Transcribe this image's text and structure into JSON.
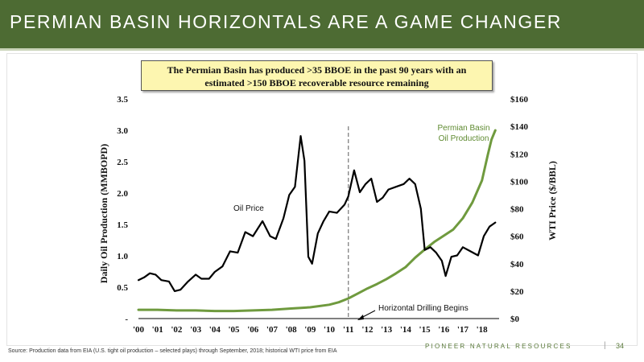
{
  "header": {
    "title": "PERMIAN BASIN HORIZONTALS ARE A GAME CHANGER"
  },
  "callout": {
    "line1": "The Permian Basin has produced >35 BBOE in the past 90 years with an",
    "line2": "estimated >150 BBOE recoverable resource remaining"
  },
  "colors": {
    "header_bg": "#4d6b33",
    "permian_line": "#6f9a3e",
    "oil_price_line": "#000000",
    "callout_bg": "#fdf6b0"
  },
  "chart_data": {
    "type": "line",
    "x_tick_labels": [
      "'00",
      "'01",
      "'02",
      "'03",
      "'04",
      "'05",
      "'06",
      "'07",
      "'08",
      "'09",
      "'10",
      "'11",
      "'12",
      "'13",
      "'14",
      "'15",
      "'16",
      "'17",
      "'18"
    ],
    "xlim": [
      2000,
      2018.9
    ],
    "left_axis": {
      "label": "Daily Oil Production (MMBOPD)",
      "ylim": [
        0,
        3.5
      ],
      "ticks": [
        0,
        0.5,
        1.0,
        1.5,
        2.0,
        2.5,
        3.0,
        3.5
      ],
      "tick_labels": [
        "-",
        "0.5",
        "1.0",
        "1.5",
        "2.0",
        "2.5",
        "3.0",
        "3.5"
      ]
    },
    "right_axis": {
      "label": "WTI Price ($/BBL)",
      "ylim": [
        0,
        160
      ],
      "ticks": [
        0,
        20,
        40,
        60,
        80,
        100,
        120,
        140,
        160
      ],
      "tick_labels": [
        "$0",
        "$20",
        "$40",
        "$60",
        "$80",
        "$100",
        "$120",
        "$140",
        "$160"
      ]
    },
    "series": [
      {
        "name": "Permian Basin Oil Production",
        "axis": "left",
        "color": "#6f9a3e",
        "x": [
          2000,
          2001,
          2002,
          2003,
          2004,
          2005,
          2006,
          2007,
          2008,
          2009,
          2010,
          2010.5,
          2011,
          2011.5,
          2012,
          2012.5,
          2013,
          2013.5,
          2014,
          2014.5,
          2015,
          2015.5,
          2016,
          2016.5,
          2017,
          2017.5,
          2018,
          2018.3,
          2018.5,
          2018.7
        ],
        "values": [
          0.14,
          0.14,
          0.13,
          0.13,
          0.12,
          0.12,
          0.13,
          0.14,
          0.16,
          0.18,
          0.22,
          0.26,
          0.32,
          0.4,
          0.48,
          0.55,
          0.63,
          0.72,
          0.82,
          0.97,
          1.1,
          1.22,
          1.32,
          1.42,
          1.6,
          1.85,
          2.2,
          2.6,
          2.85,
          3.0
        ]
      },
      {
        "name": "Oil Price",
        "axis": "right",
        "color": "#000000",
        "x": [
          2000,
          2000.3,
          2000.6,
          2000.9,
          2001.2,
          2001.6,
          2001.9,
          2002.2,
          2002.6,
          2003.0,
          2003.3,
          2003.7,
          2004.0,
          2004.4,
          2004.8,
          2005.2,
          2005.6,
          2006.0,
          2006.5,
          2006.9,
          2007.2,
          2007.6,
          2007.9,
          2008.2,
          2008.5,
          2008.7,
          2008.9,
          2009.1,
          2009.4,
          2009.7,
          2010.0,
          2010.4,
          2010.8,
          2011.0,
          2011.3,
          2011.6,
          2011.9,
          2012.2,
          2012.5,
          2012.8,
          2013.1,
          2013.5,
          2013.9,
          2014.2,
          2014.5,
          2014.8,
          2015.0,
          2015.3,
          2015.6,
          2015.9,
          2016.1,
          2016.4,
          2016.7,
          2017.0,
          2017.4,
          2017.8,
          2018.1,
          2018.4,
          2018.7
        ],
        "values": [
          28,
          30,
          33,
          32,
          28,
          27,
          20,
          21,
          27,
          32,
          29,
          29,
          34,
          38,
          49,
          48,
          63,
          60,
          71,
          60,
          58,
          73,
          90,
          96,
          133,
          115,
          45,
          40,
          62,
          71,
          78,
          77,
          83,
          89,
          108,
          92,
          98,
          102,
          85,
          88,
          94,
          96,
          98,
          102,
          98,
          80,
          50,
          52,
          48,
          42,
          31,
          45,
          46,
          52,
          49,
          46,
          60,
          67,
          70
        ]
      }
    ],
    "annotations": [
      {
        "text": "Oil Price"
      },
      {
        "line1": "Permian Basin",
        "line2": "Oil Production"
      },
      {
        "text": "Horizontal Drilling Begins",
        "x": 2011.0
      }
    ]
  },
  "footer": {
    "source": "Source: Production data from EIA (U.S. tight oil production – selected plays) through September, 2018; historical WTI price from EIA",
    "brand": "PIONEER NATURAL RESOURCES",
    "separator": "|",
    "page_number": "34"
  }
}
